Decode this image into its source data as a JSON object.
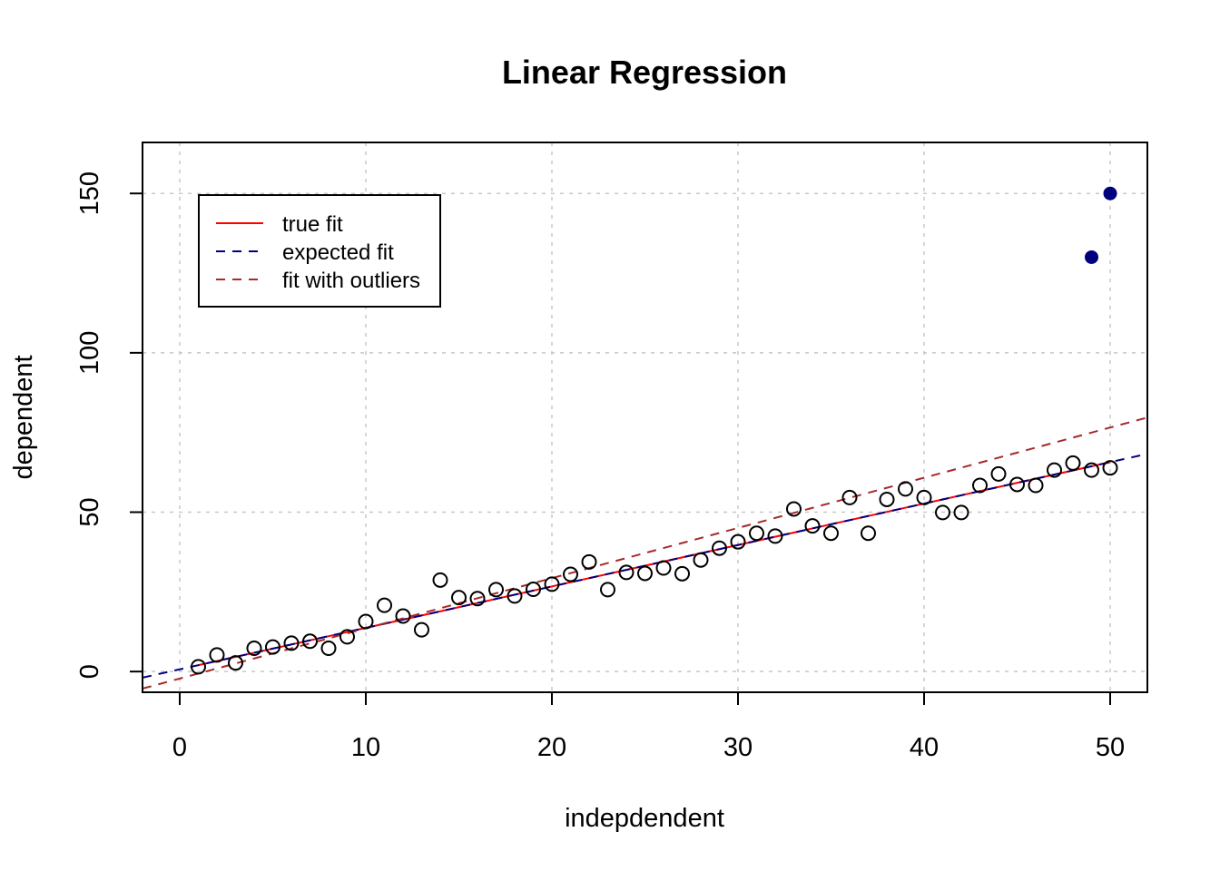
{
  "chart_data": {
    "type": "scatter",
    "title": "Linear Regression",
    "xlabel": "indepdendent",
    "ylabel": "dependent",
    "xlim": [
      -2,
      52
    ],
    "ylim": [
      -6.5,
      166
    ],
    "x_ticks": [
      0,
      10,
      20,
      30,
      40,
      50
    ],
    "y_ticks": [
      0,
      50,
      100,
      150
    ],
    "x_tick_labels": [
      "0",
      "10",
      "20",
      "30",
      "40",
      "50"
    ],
    "y_tick_labels": [
      "0",
      "50",
      "100",
      "150"
    ],
    "grid": true,
    "legend_position": "top-left",
    "points": {
      "x": [
        1,
        2,
        3,
        4,
        5,
        6,
        7,
        8,
        9,
        10,
        11,
        12,
        13,
        14,
        15,
        16,
        17,
        18,
        19,
        20,
        21,
        22,
        23,
        24,
        25,
        26,
        27,
        28,
        29,
        30,
        31,
        32,
        33,
        34,
        35,
        36,
        37,
        38,
        39,
        40,
        41,
        42,
        43,
        44,
        45,
        46,
        47,
        48,
        49,
        50
      ],
      "y": [
        1.5,
        5.2,
        2.7,
        7.3,
        7.7,
        8.9,
        9.5,
        7.3,
        10.9,
        15.7,
        20.8,
        17.4,
        13.1,
        28.7,
        23.2,
        22.9,
        25.7,
        23.7,
        25.8,
        27.4,
        30.5,
        34.4,
        25.7,
        31.1,
        30.8,
        32.5,
        30.7,
        35.0,
        38.7,
        40.7,
        43.4,
        42.5,
        51.0,
        45.7,
        43.4,
        54.6,
        43.4,
        54.0,
        57.3,
        54.6,
        49.9,
        49.9,
        58.4,
        62.0,
        58.7,
        58.4,
        63.2,
        65.4,
        63.2,
        63.9
      ],
      "color": "#000000"
    },
    "outliers": {
      "x": [
        49,
        50
      ],
      "y": [
        130,
        150
      ],
      "color": "#00007f"
    },
    "series": [
      {
        "name": "true fit",
        "type": "line",
        "intercept": 0.7,
        "slope": 1.3,
        "x_range": [
          1,
          50
        ],
        "color": "#ff0000",
        "dash": "solid"
      },
      {
        "name": "expected fit",
        "type": "line",
        "intercept": 0.7,
        "slope": 1.3,
        "x_range": [
          -2,
          52
        ],
        "color": "#00007f",
        "dash": "dashed"
      },
      {
        "name": "fit with outliers",
        "type": "line",
        "intercept": -2.2,
        "slope": 1.575,
        "x_range": [
          -2,
          52
        ],
        "color": "#a52a2a",
        "dash": "dashed"
      }
    ]
  }
}
